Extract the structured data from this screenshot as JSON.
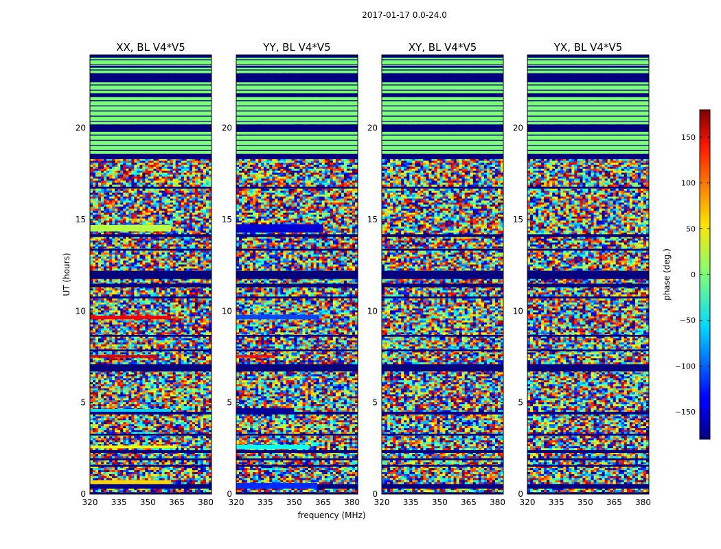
{
  "figure": {
    "suptitle": "2017-01-17 0.0-24.0"
  },
  "chart_data": [
    {
      "type": "heatmap",
      "title": "XX, BL V4*V5",
      "xlabel": "frequency (MHz)",
      "ylabel": "UT (hours)",
      "xlim": [
        320,
        383
      ],
      "ylim": [
        0,
        24
      ],
      "xticks": [
        320,
        335,
        350,
        365,
        380
      ],
      "yticks": [
        0,
        5,
        10,
        15,
        20
      ],
      "value_range": [
        -180,
        180
      ],
      "flagged_bands_hours": [
        [
          0.0,
          0.1
        ],
        [
          0.3,
          0.55
        ],
        [
          1.5,
          1.6
        ],
        [
          1.85,
          1.95
        ],
        [
          2.25,
          2.4
        ],
        [
          3.2,
          3.3
        ],
        [
          4.35,
          4.5
        ],
        [
          6.7,
          7.1
        ],
        [
          7.8,
          7.9
        ],
        [
          8.6,
          8.7
        ],
        [
          10.7,
          10.8
        ],
        [
          11.3,
          11.5
        ],
        [
          11.75,
          12.2
        ],
        [
          13.3,
          13.4
        ],
        [
          14.05,
          14.2
        ],
        [
          16.7,
          16.8
        ],
        [
          18.3,
          18.6
        ],
        [
          19.8,
          20.2
        ],
        [
          21.7,
          21.9
        ],
        [
          22.5,
          23.0
        ],
        [
          23.3,
          23.4
        ],
        [
          23.85,
          24.0
        ]
      ],
      "clean_bands_hours": [
        [
          18.6,
          19.8
        ],
        [
          20.2,
          21.7
        ],
        [
          21.9,
          22.5
        ],
        [
          23.0,
          23.85
        ]
      ],
      "coherent_bands": [
        {
          "t0": 14.35,
          "t1": 14.7,
          "phase_deg": 20,
          "f_end": 362
        },
        {
          "t0": 9.55,
          "t1": 9.75,
          "phase_deg": 140,
          "f_end": 362
        },
        {
          "t0": 7.45,
          "t1": 7.6,
          "phase_deg": 150,
          "f_end": 355
        },
        {
          "t0": 4.5,
          "t1": 4.65,
          "phase_deg": -60,
          "f_end": 362
        },
        {
          "t0": 2.5,
          "t1": 2.65,
          "phase_deg": 40,
          "f_end": 365
        },
        {
          "t0": 0.55,
          "t1": 0.75,
          "phase_deg": 60,
          "f_end": 362
        }
      ]
    },
    {
      "type": "heatmap",
      "title": "YY, BL V4*V5",
      "xlabel": "frequency (MHz)",
      "ylabel": "",
      "xlim": [
        320,
        383
      ],
      "ylim": [
        0,
        24
      ],
      "xticks": [
        320,
        335,
        350,
        365,
        380
      ],
      "yticks": [
        0,
        5,
        10,
        15,
        20
      ],
      "value_range": [
        -180,
        180
      ],
      "flagged_bands_hours": [
        [
          0.0,
          0.1
        ],
        [
          0.3,
          0.55
        ],
        [
          1.5,
          1.6
        ],
        [
          1.85,
          1.95
        ],
        [
          2.25,
          2.4
        ],
        [
          3.2,
          3.3
        ],
        [
          4.35,
          4.5
        ],
        [
          6.7,
          7.1
        ],
        [
          7.8,
          7.9
        ],
        [
          8.6,
          8.7
        ],
        [
          10.7,
          10.8
        ],
        [
          11.3,
          11.5
        ],
        [
          11.75,
          12.2
        ],
        [
          13.3,
          13.4
        ],
        [
          14.05,
          14.2
        ],
        [
          16.7,
          16.8
        ],
        [
          18.3,
          18.6
        ],
        [
          19.8,
          20.2
        ],
        [
          21.7,
          21.9
        ],
        [
          22.5,
          23.0
        ],
        [
          23.3,
          23.4
        ],
        [
          23.85,
          24.0
        ]
      ],
      "clean_bands_hours": [
        [
          18.6,
          19.8
        ],
        [
          20.2,
          21.7
        ],
        [
          21.9,
          22.5
        ],
        [
          23.0,
          23.85
        ]
      ],
      "coherent_bands": [
        {
          "t0": 14.3,
          "t1": 14.75,
          "phase_deg": -150,
          "f_end": 365
        },
        {
          "t0": 9.55,
          "t1": 9.8,
          "phase_deg": -110,
          "f_end": 362
        },
        {
          "t0": 7.45,
          "t1": 7.6,
          "phase_deg": 130,
          "f_end": 340
        },
        {
          "t0": 4.4,
          "t1": 4.7,
          "phase_deg": -170,
          "f_end": 350
        },
        {
          "t0": 2.45,
          "t1": 2.7,
          "phase_deg": -40,
          "f_end": 358
        },
        {
          "t0": 0.3,
          "t1": 0.6,
          "phase_deg": -120,
          "f_end": 362
        }
      ]
    },
    {
      "type": "heatmap",
      "title": "XY, BL V4*V5",
      "xlabel": "",
      "ylabel": "",
      "xlim": [
        320,
        383
      ],
      "ylim": [
        0,
        24
      ],
      "xticks": [
        320,
        335,
        350,
        365,
        380
      ],
      "yticks": [
        0,
        5,
        10,
        15,
        20
      ],
      "value_range": [
        -180,
        180
      ],
      "flagged_bands_hours": [
        [
          0.0,
          0.1
        ],
        [
          0.3,
          0.55
        ],
        [
          1.5,
          1.6
        ],
        [
          1.85,
          1.95
        ],
        [
          2.25,
          2.4
        ],
        [
          3.2,
          3.3
        ],
        [
          4.35,
          4.5
        ],
        [
          6.7,
          7.1
        ],
        [
          7.8,
          7.9
        ],
        [
          8.6,
          8.7
        ],
        [
          10.7,
          10.8
        ],
        [
          11.3,
          11.5
        ],
        [
          11.75,
          12.2
        ],
        [
          13.3,
          13.4
        ],
        [
          14.05,
          14.2
        ],
        [
          16.7,
          16.8
        ],
        [
          18.3,
          18.6
        ],
        [
          19.8,
          20.2
        ],
        [
          21.7,
          21.9
        ],
        [
          22.5,
          23.0
        ],
        [
          23.3,
          23.4
        ],
        [
          23.85,
          24.0
        ]
      ],
      "clean_bands_hours": [
        [
          18.6,
          19.8
        ],
        [
          20.2,
          21.7
        ],
        [
          21.9,
          22.5
        ],
        [
          23.0,
          23.85
        ]
      ],
      "coherent_bands": []
    },
    {
      "type": "heatmap",
      "title": "YX, BL V4*V5",
      "xlabel": "",
      "ylabel": "",
      "xlim": [
        320,
        383
      ],
      "ylim": [
        0,
        24
      ],
      "xticks": [
        320,
        335,
        350,
        365,
        380
      ],
      "yticks": [
        0,
        5,
        10,
        15,
        20
      ],
      "value_range": [
        -180,
        180
      ],
      "flagged_bands_hours": [
        [
          0.0,
          0.1
        ],
        [
          0.3,
          0.55
        ],
        [
          1.5,
          1.6
        ],
        [
          1.85,
          1.95
        ],
        [
          2.25,
          2.4
        ],
        [
          3.2,
          3.3
        ],
        [
          4.35,
          4.5
        ],
        [
          6.7,
          7.1
        ],
        [
          7.8,
          7.9
        ],
        [
          8.6,
          8.7
        ],
        [
          10.7,
          10.8
        ],
        [
          11.3,
          11.5
        ],
        [
          11.75,
          12.2
        ],
        [
          13.3,
          13.4
        ],
        [
          14.05,
          14.2
        ],
        [
          16.7,
          16.8
        ],
        [
          18.3,
          18.6
        ],
        [
          19.8,
          20.2
        ],
        [
          21.7,
          21.9
        ],
        [
          22.5,
          23.0
        ],
        [
          23.3,
          23.4
        ],
        [
          23.85,
          24.0
        ]
      ],
      "clean_bands_hours": [
        [
          18.6,
          19.8
        ],
        [
          20.2,
          21.7
        ],
        [
          21.9,
          22.5
        ],
        [
          23.0,
          23.85
        ]
      ],
      "coherent_bands": []
    }
  ],
  "colorbar": {
    "label": "phase (deg.)",
    "range": [
      -180,
      180
    ],
    "ticks": [
      150,
      100,
      50,
      0,
      -50,
      -100,
      -150
    ],
    "tick_labels": [
      "150",
      "100",
      "50",
      "0",
      "−50",
      "−100",
      "−150"
    ],
    "colormap": "jet",
    "flag_color": "#00007f",
    "clean_color": "#7dff7a"
  }
}
